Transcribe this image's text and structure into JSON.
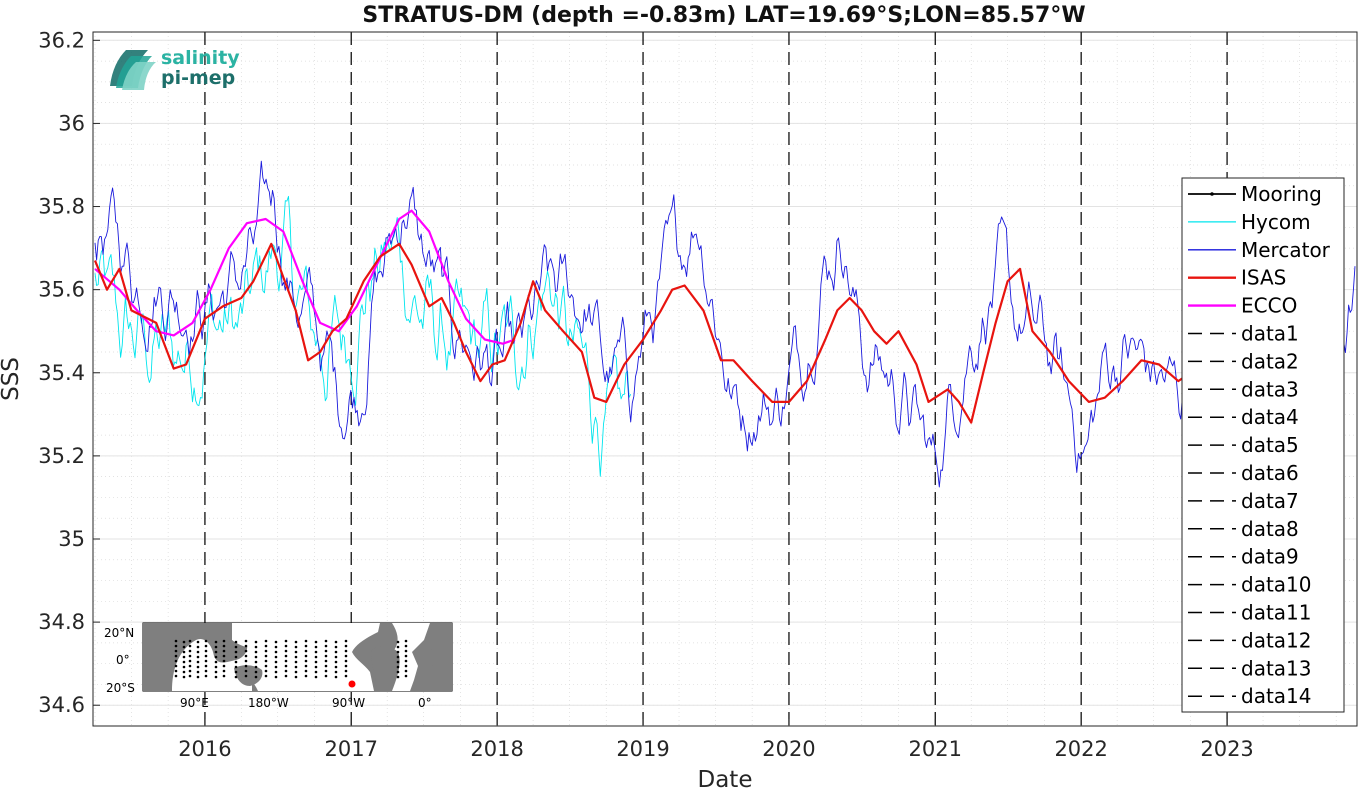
{
  "chart_data": {
    "type": "line",
    "title": "STRATUS-DM (depth =-0.83m) LAT=19.69°S;LON=85.57°W",
    "xlabel": "Date",
    "ylabel": "SSS",
    "xlim": [
      "2015-03-27",
      "2023-11-22"
    ],
    "ylim": [
      34.55,
      36.22
    ],
    "yticks": [
      "34.6",
      "34.8",
      "35",
      "35.2",
      "35.4",
      "35.6",
      "35.8",
      "36",
      "36.2"
    ],
    "xticks": [
      "2016",
      "2017",
      "2018",
      "2019",
      "2020",
      "2021",
      "2022",
      "2023"
    ],
    "grid": true,
    "legend_position": "right",
    "vlines": [
      "2016-01-01",
      "2017-01-01",
      "2018-01-01",
      "2019-01-01",
      "2020-01-01",
      "2021-01-01",
      "2022-01-01",
      "2023-01-01"
    ],
    "series": [
      {
        "name": "Mooring",
        "color": "#000000",
        "points": []
      },
      {
        "name": "Hycom",
        "color": "#00e5ee",
        "noise": 0.09,
        "points": [
          [
            "2015-04-01",
            35.62
          ],
          [
            "2015-06-01",
            35.5
          ],
          [
            "2015-08-01",
            35.47
          ],
          [
            "2015-10-01",
            35.45
          ],
          [
            "2015-12-01",
            35.46
          ],
          [
            "2016-02-01",
            35.52
          ],
          [
            "2016-04-01",
            35.5
          ],
          [
            "2016-06-01",
            35.66
          ],
          [
            "2016-07-15",
            35.7
          ],
          [
            "2016-09-01",
            35.55
          ],
          [
            "2016-11-01",
            35.45
          ],
          [
            "2017-01-01",
            35.5
          ],
          [
            "2017-03-01",
            35.65
          ],
          [
            "2017-05-01",
            35.7
          ],
          [
            "2017-06-15",
            35.55
          ],
          [
            "2017-08-01",
            35.5
          ],
          [
            "2017-10-01",
            35.45
          ],
          [
            "2017-12-01",
            35.46
          ],
          [
            "2018-02-01",
            35.45
          ],
          [
            "2018-04-01",
            35.55
          ],
          [
            "2018-05-15",
            35.62
          ],
          [
            "2018-07-01",
            35.45
          ],
          [
            "2018-09-01",
            35.35
          ],
          [
            "2018-10-15",
            35.22
          ],
          [
            "2018-12-01",
            35.35
          ]
        ]
      },
      {
        "name": "Mercator",
        "color": "#1a1adc",
        "noise": 0.07,
        "points": [
          [
            "2015-04-01",
            35.75
          ],
          [
            "2015-06-01",
            35.72
          ],
          [
            "2015-07-15",
            35.62
          ],
          [
            "2015-09-01",
            35.6
          ],
          [
            "2015-11-01",
            35.58
          ],
          [
            "2016-01-01",
            35.55
          ],
          [
            "2016-03-01",
            35.6
          ],
          [
            "2016-05-01",
            35.68
          ],
          [
            "2016-06-20",
            35.85
          ],
          [
            "2016-08-01",
            35.6
          ],
          [
            "2016-10-01",
            35.52
          ],
          [
            "2016-12-01",
            35.35
          ],
          [
            "2017-01-20",
            35.35
          ],
          [
            "2017-03-01",
            35.58
          ],
          [
            "2017-05-15",
            35.82
          ],
          [
            "2017-07-01",
            35.68
          ],
          [
            "2017-09-01",
            35.55
          ],
          [
            "2017-11-01",
            35.45
          ],
          [
            "2018-01-01",
            35.4
          ],
          [
            "2018-03-01",
            35.45
          ],
          [
            "2018-05-01",
            35.6
          ],
          [
            "2018-07-01",
            35.6
          ],
          [
            "2018-08-15",
            35.55
          ],
          [
            "2018-10-01",
            35.4
          ],
          [
            "2018-12-01",
            35.4
          ],
          [
            "2019-02-01",
            35.55
          ],
          [
            "2019-04-01",
            35.72
          ],
          [
            "2019-05-20",
            35.78
          ],
          [
            "2019-07-01",
            35.55
          ],
          [
            "2019-08-15",
            35.32
          ],
          [
            "2019-10-01",
            35.32
          ],
          [
            "2019-12-01",
            35.32
          ],
          [
            "2020-02-01",
            35.45
          ],
          [
            "2020-04-01",
            35.65
          ],
          [
            "2020-05-15",
            35.75
          ],
          [
            "2020-07-01",
            35.45
          ],
          [
            "2020-09-01",
            35.4
          ],
          [
            "2020-11-01",
            35.3
          ],
          [
            "2021-01-01",
            35.18
          ],
          [
            "2021-03-01",
            35.4
          ],
          [
            "2021-05-01",
            35.55
          ],
          [
            "2021-06-15",
            35.62
          ],
          [
            "2021-08-01",
            35.52
          ],
          [
            "2021-10-01",
            35.48
          ],
          [
            "2021-12-15",
            35.3
          ],
          [
            "2022-01-15",
            35.2
          ],
          [
            "2022-03-01",
            35.42
          ],
          [
            "2022-05-01",
            35.45
          ],
          [
            "2022-07-01",
            35.4
          ],
          [
            "2022-09-01",
            35.35
          ],
          [
            "2022-10-15",
            35.42
          ],
          [
            "2022-12-01",
            35.38
          ],
          [
            "2023-02-01",
            35.4
          ],
          [
            "2023-04-01",
            35.45
          ],
          [
            "2023-06-01",
            35.42
          ],
          [
            "2023-08-01",
            35.4
          ],
          [
            "2023-10-01",
            35.45
          ],
          [
            "2023-11-20",
            35.58
          ]
        ]
      },
      {
        "name": "ISAS",
        "color": "#e8140f",
        "points": [
          [
            "2015-04-01",
            35.67
          ],
          [
            "2015-05-01",
            35.6
          ],
          [
            "2015-06-01",
            35.65
          ],
          [
            "2015-07-01",
            35.55
          ],
          [
            "2015-09-01",
            35.52
          ],
          [
            "2015-10-15",
            35.41
          ],
          [
            "2015-11-15",
            35.42
          ],
          [
            "2016-01-01",
            35.53
          ],
          [
            "2016-02-15",
            35.56
          ],
          [
            "2016-04-01",
            35.58
          ],
          [
            "2016-05-01",
            35.62
          ],
          [
            "2016-06-15",
            35.71
          ],
          [
            "2016-07-15",
            35.63
          ],
          [
            "2016-08-15",
            35.55
          ],
          [
            "2016-09-15",
            35.43
          ],
          [
            "2016-10-15",
            35.45
          ],
          [
            "2016-11-15",
            35.5
          ],
          [
            "2016-12-20",
            35.53
          ],
          [
            "2017-02-01",
            35.62
          ],
          [
            "2017-03-15",
            35.68
          ],
          [
            "2017-05-01",
            35.71
          ],
          [
            "2017-06-01",
            35.66
          ],
          [
            "2017-07-15",
            35.56
          ],
          [
            "2017-08-15",
            35.58
          ],
          [
            "2017-09-15",
            35.52
          ],
          [
            "2017-10-15",
            35.45
          ],
          [
            "2017-11-20",
            35.38
          ],
          [
            "2017-12-20",
            35.42
          ],
          [
            "2018-01-20",
            35.43
          ],
          [
            "2018-03-01",
            35.52
          ],
          [
            "2018-04-01",
            35.62
          ],
          [
            "2018-05-01",
            35.55
          ],
          [
            "2018-06-15",
            35.5
          ],
          [
            "2018-08-01",
            35.45
          ],
          [
            "2018-09-01",
            35.34
          ],
          [
            "2018-10-01",
            35.33
          ],
          [
            "2018-11-15",
            35.42
          ],
          [
            "2019-01-01",
            35.48
          ],
          [
            "2019-02-15",
            35.55
          ],
          [
            "2019-03-15",
            35.6
          ],
          [
            "2019-04-15",
            35.61
          ],
          [
            "2019-06-01",
            35.55
          ],
          [
            "2019-07-15",
            35.43
          ],
          [
            "2019-08-15",
            35.43
          ],
          [
            "2019-10-01",
            35.38
          ],
          [
            "2019-11-20",
            35.33
          ],
          [
            "2020-01-01",
            35.33
          ],
          [
            "2020-02-15",
            35.38
          ],
          [
            "2020-04-01",
            35.48
          ],
          [
            "2020-05-01",
            35.55
          ],
          [
            "2020-06-01",
            35.58
          ],
          [
            "2020-07-01",
            35.55
          ],
          [
            "2020-08-01",
            35.5
          ],
          [
            "2020-09-01",
            35.47
          ],
          [
            "2020-10-01",
            35.5
          ],
          [
            "2020-11-15",
            35.42
          ],
          [
            "2020-12-15",
            35.33
          ],
          [
            "2021-02-01",
            35.36
          ],
          [
            "2021-03-01",
            35.33
          ],
          [
            "2021-04-01",
            35.28
          ],
          [
            "2021-05-01",
            35.4
          ],
          [
            "2021-06-01",
            35.52
          ],
          [
            "2021-07-01",
            35.62
          ],
          [
            "2021-08-01",
            35.65
          ],
          [
            "2021-09-01",
            35.5
          ],
          [
            "2021-10-15",
            35.45
          ],
          [
            "2021-12-01",
            35.38
          ],
          [
            "2022-01-20",
            35.33
          ],
          [
            "2022-03-01",
            35.34
          ],
          [
            "2022-04-15",
            35.38
          ],
          [
            "2022-06-01",
            35.43
          ],
          [
            "2022-07-15",
            35.42
          ],
          [
            "2022-09-01",
            35.38
          ],
          [
            "2022-10-01",
            35.4
          ],
          [
            "2022-11-01",
            35.32
          ],
          [
            "2023-01-01",
            35.32
          ],
          [
            "2023-01-20",
            35.31
          ]
        ]
      },
      {
        "name": "ECCO",
        "color": "#ff00ff",
        "points": [
          [
            "2015-04-01",
            35.65
          ],
          [
            "2015-06-01",
            35.6
          ],
          [
            "2015-07-15",
            35.55
          ],
          [
            "2015-09-01",
            35.5
          ],
          [
            "2015-10-15",
            35.49
          ],
          [
            "2015-12-01",
            35.52
          ],
          [
            "2016-01-15",
            35.6
          ],
          [
            "2016-03-01",
            35.7
          ],
          [
            "2016-04-15",
            35.76
          ],
          [
            "2016-06-01",
            35.77
          ],
          [
            "2016-07-15",
            35.74
          ],
          [
            "2016-09-01",
            35.62
          ],
          [
            "2016-10-15",
            35.52
          ],
          [
            "2016-12-01",
            35.5
          ],
          [
            "2017-01-15",
            35.56
          ],
          [
            "2017-03-01",
            35.65
          ],
          [
            "2017-05-01",
            35.77
          ],
          [
            "2017-06-01",
            35.79
          ],
          [
            "2017-07-15",
            35.74
          ],
          [
            "2017-09-01",
            35.62
          ],
          [
            "2017-10-15",
            35.53
          ],
          [
            "2017-12-01",
            35.48
          ],
          [
            "2018-01-15",
            35.47
          ],
          [
            "2018-02-15",
            35.48
          ]
        ]
      },
      {
        "name": "data1",
        "dashed": true,
        "points": []
      },
      {
        "name": "data2",
        "dashed": true,
        "points": []
      },
      {
        "name": "data3",
        "dashed": true,
        "points": []
      },
      {
        "name": "data4",
        "dashed": true,
        "points": []
      },
      {
        "name": "data5",
        "dashed": true,
        "points": []
      },
      {
        "name": "data6",
        "dashed": true,
        "points": []
      },
      {
        "name": "data7",
        "dashed": true,
        "points": []
      },
      {
        "name": "data8",
        "dashed": true,
        "points": []
      },
      {
        "name": "data9",
        "dashed": true,
        "points": []
      },
      {
        "name": "data10",
        "dashed": true,
        "points": []
      },
      {
        "name": "data11",
        "dashed": true,
        "points": []
      },
      {
        "name": "data12",
        "dashed": true,
        "points": []
      },
      {
        "name": "data13",
        "dashed": true,
        "points": []
      },
      {
        "name": "data14",
        "dashed": true,
        "points": []
      }
    ]
  },
  "logo": {
    "line1": "salinity",
    "line2": "pi-mep"
  },
  "inset_map": {
    "lat_labels": [
      "20°N",
      "0°",
      "20°S"
    ],
    "lon_labels": [
      "90°E",
      "180°W",
      "90°W",
      "0°"
    ],
    "marker_color": "#ff0000"
  }
}
